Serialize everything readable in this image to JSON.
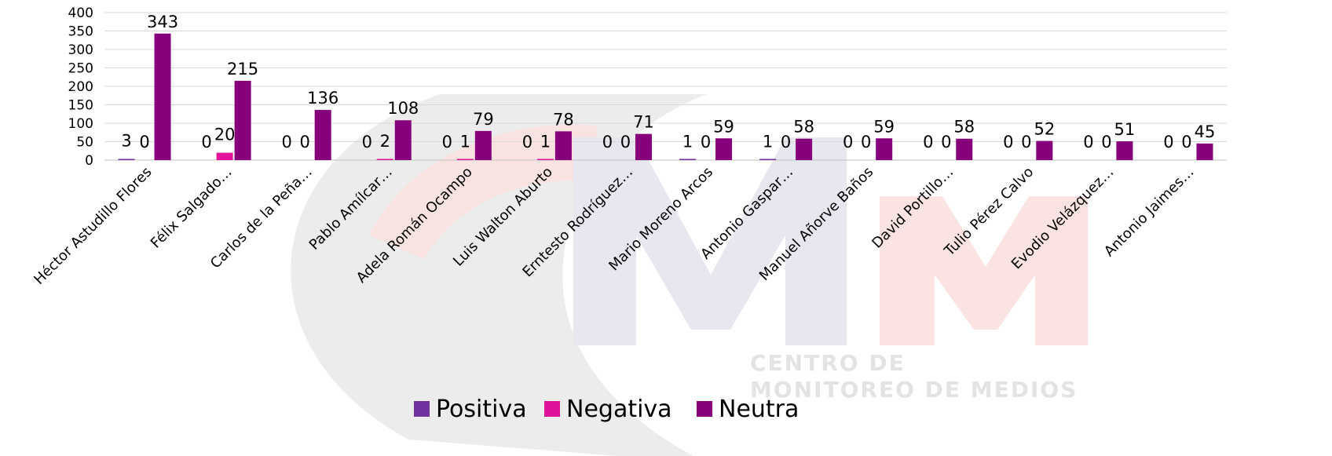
{
  "chart_data": {
    "type": "bar",
    "categories": [
      "Héctor Astudillo Flores",
      "Félix Salgado…",
      "Carlos de la Peña…",
      "Pablo Amílcar…",
      "Adela Román Ocampo",
      "Luis Walton Aburto",
      "Erntesto Rodríguez…",
      "Mario Moreno Arcos",
      "Antonio Gaspar…",
      "Manuel Añorve Baños",
      "David Portillo…",
      "Tulio Pérez Calvo",
      "Evodio Velázquez…",
      "Antonio Jaimes…"
    ],
    "series": [
      {
        "name": "Positiva",
        "color": "#7030a0",
        "values": [
          3,
          0,
          0,
          0,
          0,
          0,
          0,
          1,
          1,
          0,
          0,
          0,
          0,
          0
        ]
      },
      {
        "name": "Negativa",
        "color": "#e0129a",
        "values": [
          0,
          20,
          0,
          2,
          1,
          1,
          0,
          0,
          0,
          0,
          0,
          0,
          0,
          0
        ]
      },
      {
        "name": "Neutra",
        "color": "#86007c",
        "values": [
          343,
          215,
          136,
          108,
          79,
          78,
          71,
          59,
          58,
          59,
          58,
          52,
          51,
          45
        ]
      }
    ],
    "ylim": [
      0,
      400
    ],
    "yticks": [
      0,
      50,
      100,
      150,
      200,
      250,
      300,
      350,
      400
    ],
    "grid": true,
    "legend_position": "bottom"
  },
  "watermark": {
    "line1": "CENTRO DE",
    "line2": "MONITOREO DE MEDIOS"
  }
}
